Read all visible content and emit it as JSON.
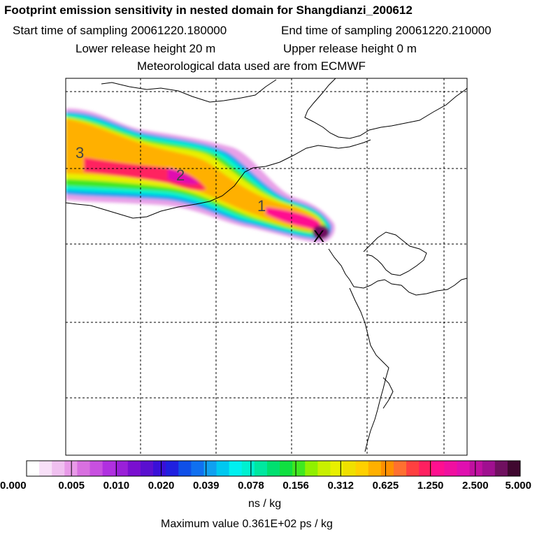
{
  "header": {
    "title": "Footprint emission sensitivity in nested domain for Shangdianzi_200612",
    "start_label": "Start time of sampling 20061220.180000",
    "end_label": "End time of sampling 20061220.210000",
    "lower_label": "Lower release height   20 m",
    "upper_label": "Upper release height    0 m",
    "met_label": "Meteorological data used are from ECMWF"
  },
  "map": {
    "contour_labels": [
      "3",
      "2",
      "1"
    ],
    "receptor_marker": "X"
  },
  "colorbar": {
    "ticks": [
      "0.000",
      "0.005",
      "0.010",
      "0.020",
      "0.039",
      "0.078",
      "0.156",
      "0.312",
      "0.625",
      "1.250",
      "2.500",
      "5.000"
    ],
    "colors": [
      "#ffffff",
      "#f8e0f8",
      "#f0c0f0",
      "#e89ae8",
      "#d870e0",
      "#c850e0",
      "#b030e0",
      "#9a20d8",
      "#7a10d0",
      "#5a10d0",
      "#3a10d8",
      "#2020e0",
      "#1050e8",
      "#1070f0",
      "#10a0f0",
      "#00c8f0",
      "#00f0f0",
      "#00f0d0",
      "#00e8a0",
      "#00e070",
      "#10e040",
      "#40e820",
      "#90f000",
      "#c8f000",
      "#e8f000",
      "#f0e000",
      "#ffd000",
      "#ffb000",
      "#ff9000",
      "#ff7030",
      "#ff4040",
      "#ff2060",
      "#ff1090",
      "#f010a0",
      "#e010b0",
      "#c010a0",
      "#a01090",
      "#701060",
      "#400830"
    ],
    "unit": "ns / kg",
    "max_value": "Maximum value  0.361E+02 ps / kg"
  }
}
